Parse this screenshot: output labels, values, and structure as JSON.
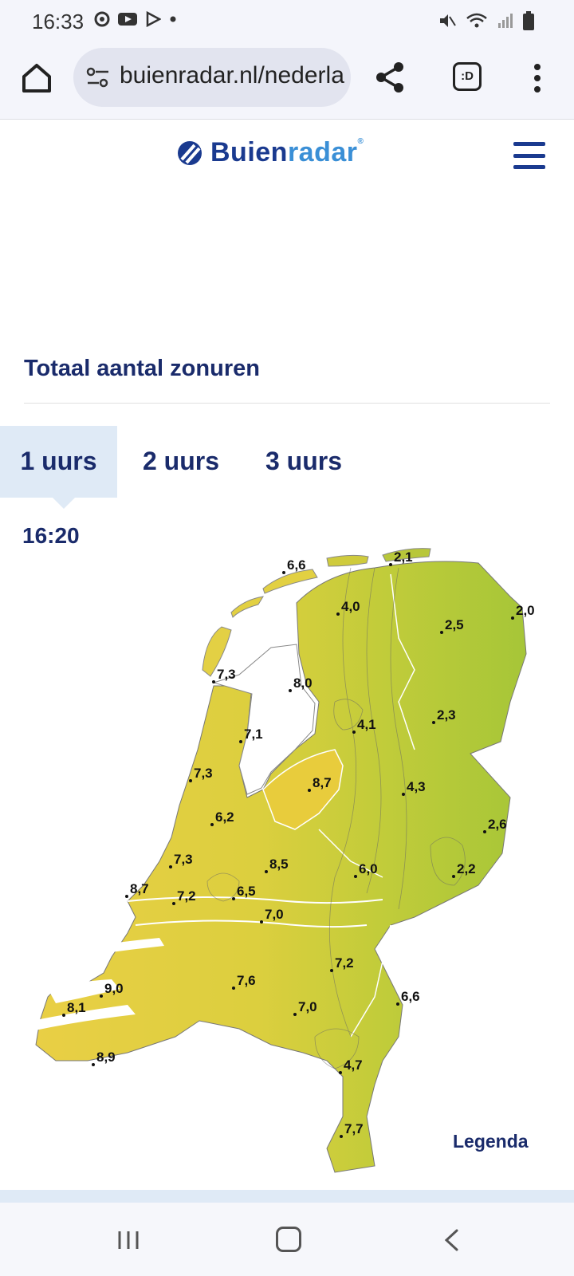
{
  "status_bar": {
    "time": "16:33",
    "left_icons": [
      "chrome-icon",
      "youtube-icon",
      "play-store-icon",
      "dot-icon"
    ],
    "right_icons": [
      "mute-icon",
      "wifi-icon",
      "signal-icon",
      "battery-icon"
    ]
  },
  "browser": {
    "url": "buienradar.nl/nederla",
    "tabs_label": ":D"
  },
  "site": {
    "logo_part1": "Buien",
    "logo_part2": "radar",
    "logo_reg": "®"
  },
  "section": {
    "title": "Totaal aantal zonuren"
  },
  "tabs": [
    {
      "label": "1 uurs",
      "active": true
    },
    {
      "label": "2 uurs",
      "active": false
    },
    {
      "label": "3 uurs",
      "active": false
    }
  ],
  "time_label": "16:20",
  "map_values": [
    "6,6",
    "2,1",
    "4,0",
    "2,0",
    "2,5",
    "7,3",
    "8,0",
    "4,1",
    "2,3",
    "7,1",
    "7,3",
    "8,7",
    "4,3",
    "6,2",
    "2,6",
    "7,3",
    "8,5",
    "6,0",
    "2,2",
    "8,7",
    "7,2",
    "6,5",
    "7,0",
    "7,2",
    "9,0",
    "7,6",
    "6,6",
    "8,1",
    "7,0",
    "8,9",
    "4,7",
    "7,7"
  ],
  "legend_label": "Legenda",
  "colors": {
    "brand_dark": "#1a3a8f",
    "brand_light": "#3a8fd6",
    "tab_active_bg": "#dfeaf6",
    "map_high_sun": "#e8c93a",
    "map_low_sun": "#a8c63a"
  }
}
